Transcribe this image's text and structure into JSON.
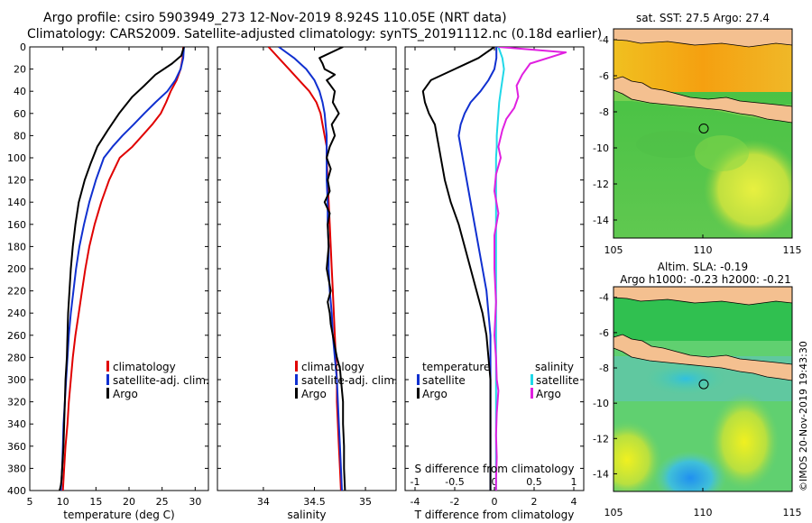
{
  "title_line1": "Argo profile: csiro 5903949_273 12-Nov-2019 8.924S 110.05E (NRT data)",
  "title_line2": "Climatology: CARS2009. Satellite-adjusted climatology: synTS_20191112.nc (0.18d earlier)",
  "timestamp": "©IMOS 20-Nov-2019 19:43:30",
  "colors": {
    "climatology": "#e00000",
    "satellite": "#1030d0",
    "argo": "#000000",
    "sal_satellite": "#20d8e8",
    "sal_argo": "#e020e0",
    "land": "#f4c090"
  },
  "chart_data": [
    {
      "type": "line",
      "name": "temperature-profile",
      "xlabel": "temperature (deg C)",
      "ylabel": "",
      "xlim": [
        5,
        32
      ],
      "ylim": [
        400,
        0
      ],
      "xticks": [
        "5",
        "10",
        "15",
        "20",
        "25",
        "30"
      ],
      "xtick_values": [
        5,
        10,
        15,
        20,
        25,
        30
      ],
      "yticks": [
        "0",
        "20",
        "40",
        "60",
        "80",
        "100",
        "120",
        "140",
        "160",
        "180",
        "200",
        "220",
        "240",
        "260",
        "280",
        "300",
        "320",
        "340",
        "360",
        "380",
        "400"
      ],
      "ytick_values": [
        0,
        20,
        40,
        60,
        80,
        100,
        120,
        140,
        160,
        180,
        200,
        220,
        240,
        260,
        280,
        300,
        320,
        340,
        360,
        380,
        400
      ],
      "legend": [
        "climatology",
        "satellite-adj. clim.",
        "Argo"
      ],
      "series": [
        {
          "name": "climatology",
          "color_key": "climatology",
          "x": [
            28.2,
            28.1,
            27.8,
            27.2,
            26.3,
            25.6,
            24.8,
            23.5,
            22.0,
            20.5,
            18.6,
            17.0,
            15.8,
            14.8,
            14.0,
            13.4,
            12.9,
            12.4,
            11.9,
            11.5,
            11.2,
            10.9,
            10.7,
            10.4,
            10.2,
            10.0
          ],
          "y": [
            0,
            10,
            20,
            30,
            40,
            50,
            60,
            70,
            80,
            90,
            100,
            120,
            140,
            160,
            180,
            200,
            220,
            240,
            260,
            280,
            300,
            320,
            340,
            360,
            380,
            400
          ]
        },
        {
          "name": "satellite-adj. clim.",
          "color_key": "satellite",
          "x": [
            28.3,
            28.2,
            27.8,
            27.0,
            25.8,
            24.0,
            22.3,
            20.7,
            19.0,
            17.5,
            16.2,
            15.0,
            14.0,
            13.2,
            12.5,
            12.0,
            11.6,
            11.2,
            10.9,
            10.7,
            10.5,
            10.3,
            10.1,
            10.0,
            9.9,
            9.7
          ],
          "y": [
            0,
            10,
            20,
            30,
            40,
            50,
            60,
            70,
            80,
            90,
            100,
            120,
            140,
            160,
            180,
            200,
            220,
            240,
            260,
            280,
            300,
            320,
            340,
            360,
            380,
            400
          ]
        },
        {
          "name": "Argo",
          "color_key": "argo",
          "x": [
            28.3,
            27.9,
            26.5,
            24.0,
            22.3,
            20.5,
            18.5,
            16.8,
            15.2,
            14.2,
            13.3,
            12.4,
            11.9,
            11.5,
            11.2,
            11.0,
            10.8,
            10.7,
            10.6,
            10.4,
            10.3,
            10.2,
            10.1,
            10.0,
            9.9,
            9.8,
            9.7,
            9.6,
            9.5
          ],
          "y": [
            0,
            8,
            15,
            25,
            35,
            45,
            60,
            75,
            90,
            105,
            120,
            140,
            160,
            180,
            200,
            220,
            240,
            260,
            280,
            300,
            320,
            340,
            360,
            370,
            380,
            390,
            395,
            398,
            400
          ]
        }
      ]
    },
    {
      "type": "line",
      "name": "salinity-profile",
      "xlabel": "salinity",
      "ylabel": "",
      "xlim": [
        33.55,
        35.3
      ],
      "ylim": [
        400,
        0
      ],
      "xticks": [
        "34",
        "34.5",
        "35"
      ],
      "xtick_values": [
        34,
        34.5,
        35
      ],
      "legend": [
        "climatology",
        "satellite-adj. clim.",
        "Argo"
      ],
      "series": [
        {
          "name": "climatology",
          "color_key": "climatology",
          "x": [
            34.05,
            34.15,
            34.25,
            34.35,
            34.45,
            34.52,
            34.56,
            34.58,
            34.6,
            34.62,
            34.62,
            34.63,
            34.64,
            34.65,
            34.66,
            34.67,
            34.68,
            34.69,
            34.7,
            34.71,
            34.72,
            34.72,
            34.73,
            34.74,
            34.75,
            34.76
          ],
          "y": [
            0,
            10,
            20,
            30,
            40,
            50,
            60,
            70,
            80,
            90,
            100,
            120,
            140,
            160,
            180,
            200,
            220,
            240,
            260,
            280,
            300,
            320,
            340,
            360,
            380,
            400
          ]
        },
        {
          "name": "satellite-adj. clim.",
          "color_key": "satellite",
          "x": [
            34.15,
            34.3,
            34.42,
            34.5,
            34.55,
            34.58,
            34.6,
            34.61,
            34.62,
            34.62,
            34.62,
            34.62,
            34.63,
            34.63,
            34.64,
            34.64,
            34.65,
            34.67,
            34.68,
            34.7,
            34.72,
            34.73,
            34.74,
            34.75,
            34.76,
            34.77
          ],
          "y": [
            0,
            10,
            20,
            30,
            40,
            50,
            60,
            70,
            80,
            90,
            100,
            120,
            140,
            160,
            180,
            200,
            220,
            240,
            260,
            280,
            300,
            320,
            340,
            360,
            380,
            400
          ]
        },
        {
          "name": "Argo",
          "color_key": "argo",
          "x": [
            34.78,
            34.55,
            34.58,
            34.6,
            34.7,
            34.62,
            34.7,
            34.68,
            34.74,
            34.67,
            34.7,
            34.65,
            34.62,
            34.66,
            34.63,
            34.65,
            34.6,
            34.65,
            34.63,
            34.64,
            34.62,
            34.66,
            34.63,
            34.65,
            34.66,
            34.68,
            34.7,
            34.72,
            34.75,
            34.76,
            34.78,
            34.78,
            34.79,
            34.79,
            34.8
          ],
          "y": [
            0,
            10,
            15,
            20,
            25,
            30,
            40,
            50,
            60,
            70,
            80,
            90,
            100,
            110,
            120,
            130,
            140,
            150,
            160,
            180,
            200,
            220,
            230,
            240,
            250,
            260,
            270,
            280,
            290,
            300,
            320,
            340,
            360,
            380,
            400
          ]
        }
      ]
    },
    {
      "type": "line",
      "name": "difference-profile",
      "xlabel": "T difference from climatology",
      "top_xlabel": "S difference from climatology",
      "xlim": [
        -4.5,
        4.5
      ],
      "ylim": [
        400,
        0
      ],
      "xticks": [
        "-4",
        "-2",
        "0",
        "2",
        "4"
      ],
      "xtick_values": [
        -4,
        -2,
        0,
        2,
        4
      ],
      "top_xticks": [
        "-1",
        "-0.5",
        "0",
        "0.5",
        "1"
      ],
      "top_xtick_values": [
        -1,
        -0.5,
        0,
        0.5,
        1
      ],
      "legend_temperature": [
        "temperature",
        "satellite",
        "Argo"
      ],
      "legend_salinity": [
        "salinity",
        "satellite",
        "Argo"
      ],
      "series": [
        {
          "name": "temperature satellite",
          "color_key": "satellite",
          "x": [
            0.1,
            0.1,
            0.0,
            -0.3,
            -0.7,
            -1.2,
            -1.5,
            -1.7,
            -1.8,
            -1.7,
            -1.6,
            -1.4,
            -1.2,
            -1.0,
            -0.8,
            -0.6,
            -0.4,
            -0.3,
            -0.2,
            -0.2,
            -0.2,
            -0.2,
            -0.2,
            -0.2,
            -0.2,
            -0.2
          ],
          "y": [
            0,
            10,
            20,
            30,
            40,
            50,
            60,
            70,
            80,
            90,
            100,
            120,
            140,
            160,
            180,
            200,
            220,
            240,
            260,
            280,
            300,
            320,
            340,
            360,
            380,
            400
          ]
        },
        {
          "name": "temperature Argo",
          "color_key": "argo",
          "x": [
            0.0,
            -0.8,
            -2.0,
            -3.2,
            -3.6,
            -3.5,
            -3.3,
            -3.0,
            -2.9,
            -2.8,
            -2.7,
            -2.5,
            -2.2,
            -1.8,
            -1.5,
            -1.2,
            -0.9,
            -0.6,
            -0.4,
            -0.3,
            -0.2,
            -0.2,
            -0.2,
            -0.2,
            -0.2,
            -0.2
          ],
          "y": [
            0,
            10,
            20,
            30,
            40,
            50,
            60,
            70,
            80,
            90,
            100,
            120,
            140,
            160,
            180,
            200,
            220,
            240,
            260,
            280,
            300,
            320,
            340,
            360,
            380,
            400
          ]
        },
        {
          "name": "salinity satellite",
          "color_key": "sal_satellite",
          "x": [
            0.05,
            0.1,
            0.12,
            0.1,
            0.08,
            0.06,
            0.05,
            0.04,
            0.03,
            0.03,
            0.02,
            0.02,
            0.02,
            0.02,
            0.02,
            0.02,
            0.02,
            0.02,
            0.02,
            0.02,
            0.02,
            0.02,
            0.02,
            0.02,
            0.02,
            0.02
          ],
          "y": [
            0,
            10,
            20,
            30,
            40,
            50,
            60,
            70,
            80,
            90,
            100,
            120,
            140,
            160,
            180,
            200,
            220,
            240,
            260,
            280,
            300,
            320,
            340,
            360,
            380,
            400
          ],
          "axis": "top"
        },
        {
          "name": "salinity Argo",
          "color_key": "sal_argo",
          "x": [
            0.05,
            0.9,
            0.45,
            0.35,
            0.28,
            0.3,
            0.25,
            0.15,
            0.1,
            0.05,
            0.08,
            0.02,
            0.0,
            0.05,
            0.0,
            0.0,
            0.02,
            0.0,
            0.02,
            0.03,
            0.05,
            0.03,
            0.02,
            0.03,
            0.02,
            0.02
          ],
          "y": [
            0,
            5,
            15,
            25,
            35,
            45,
            55,
            65,
            75,
            90,
            100,
            115,
            130,
            150,
            170,
            200,
            230,
            260,
            280,
            300,
            310,
            330,
            350,
            370,
            390,
            400
          ],
          "axis": "top"
        }
      ]
    }
  ],
  "maps": [
    {
      "name": "sst-map",
      "title": "sat. SST: 27.5 Argo: 27.4",
      "xticks": [
        "105",
        "110",
        "115"
      ],
      "yticks": [
        "-4",
        "-6",
        "-8",
        "-10",
        "-12",
        "-14"
      ],
      "lon_range": [
        105,
        115
      ],
      "lat_range": [
        -15,
        -3.4
      ],
      "argo_lon": 110.05,
      "argo_lat": -8.924
    },
    {
      "name": "sla-map",
      "title_line1": "Altim. SLA: -0.19",
      "title_line2": "Argo h1000: -0.23 h2000: -0.21",
      "xticks": [
        "105",
        "110",
        "115"
      ],
      "yticks": [
        "-4",
        "-6",
        "-8",
        "-10",
        "-12",
        "-14"
      ],
      "lon_range": [
        105,
        115
      ],
      "lat_range": [
        -15,
        -3.4
      ],
      "argo_lon": 110.05,
      "argo_lat": -8.924
    }
  ]
}
